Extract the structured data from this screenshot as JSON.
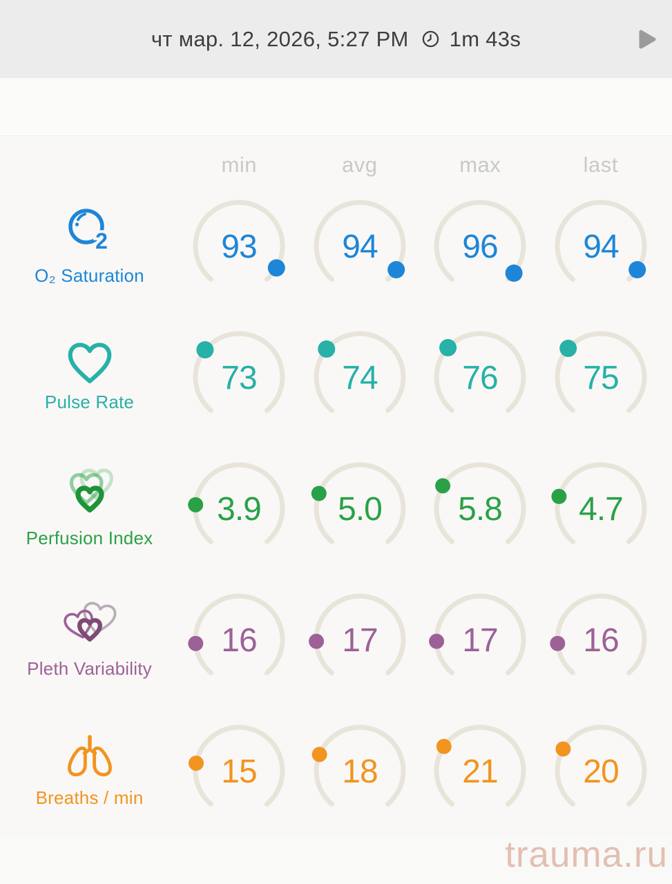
{
  "header": {
    "date": "чт мар. 12, 2026, 5:27 PM",
    "duration": "1m 43s",
    "clock_icon": "clock-outline",
    "play_icon": "play-triangle",
    "text_color": "#3e3e3e",
    "play_color": "#9b9b9b",
    "bar_color": "#ececec"
  },
  "chart_data": {
    "type": "gauge-grid",
    "columns": [
      "min",
      "avg",
      "max",
      "last"
    ],
    "arc": {
      "start_deg": 220,
      "sweep_deg": 280,
      "track_color": "#e9e4d9"
    },
    "rows": [
      {
        "label": "O₂ Saturation",
        "icon": "o2-bubble-icon",
        "color": "#1d86d8",
        "gauge_min": 0,
        "gauge_max": 100,
        "values": [
          93,
          94,
          96,
          94
        ],
        "display": [
          "93",
          "94",
          "96",
          "94"
        ]
      },
      {
        "label": "Pulse Rate",
        "icon": "heart-outline-icon",
        "color": "#27b1a7",
        "gauge_min": 0,
        "gauge_max": 230,
        "values": [
          73,
          74,
          76,
          75
        ],
        "display": [
          "73",
          "74",
          "76",
          "75"
        ]
      },
      {
        "label": "Perfusion Index",
        "icon": "layered-hearts-icon",
        "color": "#2aa147",
        "gauge_min": 0,
        "gauge_max": 20,
        "values": [
          3.9,
          5.0,
          5.8,
          4.7
        ],
        "display": [
          "3.9",
          "5.0",
          "5.8",
          "4.7"
        ]
      },
      {
        "label": "Pleth Variability",
        "icon": "double-hearts-icon",
        "color": "#9d6198",
        "gauge_min": 0,
        "gauge_max": 100,
        "values": [
          16,
          17,
          17,
          16
        ],
        "display": [
          "16",
          "17",
          "17",
          "16"
        ]
      },
      {
        "label": "Breaths / min",
        "icon": "lungs-icon",
        "color": "#f29420",
        "gauge_min": 0,
        "gauge_max": 70,
        "values": [
          15,
          18,
          21,
          20
        ],
        "display": [
          "15",
          "18",
          "21",
          "20"
        ]
      }
    ]
  },
  "watermark": "trauma.ru"
}
